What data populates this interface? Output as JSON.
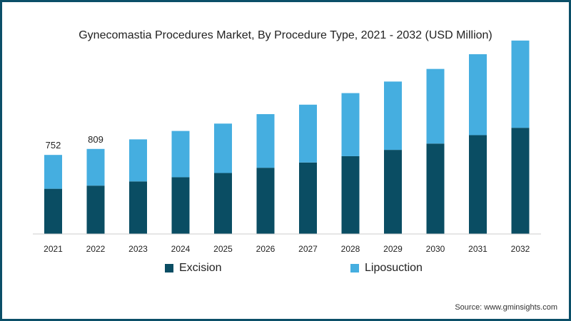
{
  "title": "Gynecomastia Procedures Market, By Procedure Type, 2021 - 2032 (USD Million)",
  "source": "Source: www.gminsights.com",
  "colors": {
    "excision": "#0a4d63",
    "liposuction": "#45aee0",
    "axis": "#cccccc",
    "text": "#222222"
  },
  "chart_data": {
    "type": "bar",
    "stacked": true,
    "categories": [
      "2021",
      "2022",
      "2023",
      "2024",
      "2025",
      "2026",
      "2027",
      "2028",
      "2029",
      "2030",
      "2031",
      "2032"
    ],
    "series": [
      {
        "name": "Excision",
        "values": [
          430,
          460,
          500,
          540,
          580,
          630,
          680,
          740,
          800,
          860,
          940,
          1010
        ]
      },
      {
        "name": "Liposuction",
        "values": [
          322,
          349,
          400,
          440,
          470,
          510,
          550,
          600,
          650,
          710,
          770,
          830
        ]
      }
    ],
    "totals_labels": {
      "2021": "752",
      "2022": "809"
    },
    "ylim": [
      0,
      1900
    ],
    "grid": false,
    "legend": "bottom-center"
  }
}
